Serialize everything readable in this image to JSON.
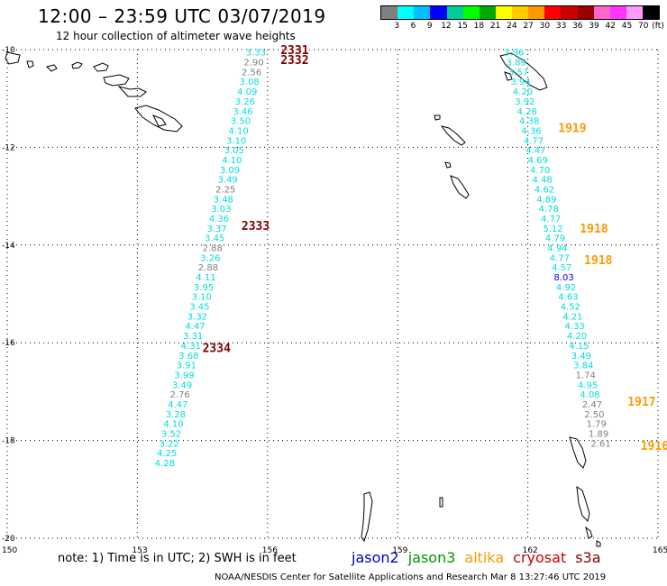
{
  "title": "12:00 – 23:59 UTC 03/07/2019",
  "subtitle": "12 hour collection of altimeter wave heights",
  "scale": {
    "unit_label": "(ft)",
    "labels": [
      "3",
      "6",
      "9",
      "12",
      "15",
      "18",
      "21",
      "24",
      "27",
      "30",
      "33",
      "36",
      "39",
      "42",
      "45",
      "70"
    ],
    "colors": [
      "#808080",
      "#00ffff",
      "#00bfff",
      "#0000ff",
      "#00cc99",
      "#00ff00",
      "#00aa00",
      "#ffff00",
      "#ffcc00",
      "#ff9900",
      "#ff0000",
      "#cc0000",
      "#990000",
      "#ff66cc",
      "#ff33ff",
      "#ff99ff",
      "#000000"
    ]
  },
  "axes": {
    "lat_labels": [
      "-10",
      "-12",
      "-14",
      "-16",
      "-18",
      "-20"
    ],
    "lon_labels": [
      "150",
      "153",
      "156",
      "159",
      "162",
      "165"
    ]
  },
  "tracks": [
    {
      "color": "#00dddd",
      "lat": -10.05,
      "lon": 155.75,
      "value": "3.33"
    },
    {
      "color": "#808080",
      "lat": -10.25,
      "lon": 155.7,
      "value": "2.90"
    },
    {
      "color": "#808080",
      "lat": -10.45,
      "lon": 155.65,
      "value": "2.56"
    },
    {
      "color": "#00dddd",
      "lat": -10.65,
      "lon": 155.6,
      "value": "3.08"
    },
    {
      "color": "#00dddd",
      "lat": -10.85,
      "lon": 155.55,
      "value": "4.09"
    },
    {
      "color": "#00dddd",
      "lat": -11.05,
      "lon": 155.5,
      "value": "3.26"
    },
    {
      "color": "#00dddd",
      "lat": -11.25,
      "lon": 155.45,
      "value": "3.46"
    },
    {
      "color": "#00dddd",
      "lat": -11.45,
      "lon": 155.4,
      "value": "3.50"
    },
    {
      "color": "#00dddd",
      "lat": -11.65,
      "lon": 155.35,
      "value": "4.10"
    },
    {
      "color": "#00dddd",
      "lat": -11.85,
      "lon": 155.3,
      "value": "3.10"
    },
    {
      "color": "#00dddd",
      "lat": -12.05,
      "lon": 155.25,
      "value": "3.05"
    },
    {
      "color": "#00dddd",
      "lat": -12.25,
      "lon": 155.2,
      "value": "4.10"
    },
    {
      "color": "#00dddd",
      "lat": -12.45,
      "lon": 155.15,
      "value": "3.09"
    },
    {
      "color": "#00dddd",
      "lat": -12.65,
      "lon": 155.1,
      "value": "3.49"
    },
    {
      "color": "#808080",
      "lat": -12.85,
      "lon": 155.05,
      "value": "2.25"
    },
    {
      "color": "#00dddd",
      "lat": -13.05,
      "lon": 155.0,
      "value": "3.48"
    },
    {
      "color": "#00dddd",
      "lat": -13.25,
      "lon": 154.95,
      "value": "3.03"
    },
    {
      "color": "#00dddd",
      "lat": -13.45,
      "lon": 154.9,
      "value": "4.36"
    },
    {
      "color": "#00dddd",
      "lat": -13.65,
      "lon": 154.85,
      "value": "3.37"
    },
    {
      "color": "#00dddd",
      "lat": -13.85,
      "lon": 154.8,
      "value": "3.45"
    },
    {
      "color": "#808080",
      "lat": -14.05,
      "lon": 154.75,
      "value": "2.88"
    },
    {
      "color": "#00dddd",
      "lat": -14.25,
      "lon": 154.7,
      "value": "3.26"
    },
    {
      "color": "#808080",
      "lat": -14.45,
      "lon": 154.65,
      "value": "2.88"
    },
    {
      "color": "#00dddd",
      "lat": -14.65,
      "lon": 154.6,
      "value": "4.11"
    },
    {
      "color": "#00dddd",
      "lat": -14.85,
      "lon": 154.55,
      "value": "3.95"
    },
    {
      "color": "#00dddd",
      "lat": -15.05,
      "lon": 154.5,
      "value": "3.10"
    },
    {
      "color": "#00dddd",
      "lat": -15.25,
      "lon": 154.45,
      "value": "3.45"
    },
    {
      "color": "#00dddd",
      "lat": -15.45,
      "lon": 154.4,
      "value": "3.32"
    },
    {
      "color": "#00dddd",
      "lat": -15.65,
      "lon": 154.35,
      "value": "4.47"
    },
    {
      "color": "#00dddd",
      "lat": -15.85,
      "lon": 154.3,
      "value": "3.31"
    },
    {
      "color": "#00dddd",
      "lat": -16.05,
      "lon": 154.25,
      "value": "4.31"
    },
    {
      "color": "#00dddd",
      "lat": -16.25,
      "lon": 154.2,
      "value": "3.68"
    },
    {
      "color": "#00dddd",
      "lat": -16.45,
      "lon": 154.15,
      "value": "3.91"
    },
    {
      "color": "#00dddd",
      "lat": -16.65,
      "lon": 154.1,
      "value": "3.99"
    },
    {
      "color": "#00dddd",
      "lat": -16.85,
      "lon": 154.05,
      "value": "3.49"
    },
    {
      "color": "#808080",
      "lat": -17.05,
      "lon": 154.0,
      "value": "2.76"
    },
    {
      "color": "#00dddd",
      "lat": -17.25,
      "lon": 153.95,
      "value": "4.47"
    },
    {
      "color": "#00dddd",
      "lat": -17.45,
      "lon": 153.9,
      "value": "3.28"
    },
    {
      "color": "#00dddd",
      "lat": -17.65,
      "lon": 153.85,
      "value": "4.10"
    },
    {
      "color": "#00dddd",
      "lat": -17.85,
      "lon": 153.8,
      "value": "3.52"
    },
    {
      "color": "#00dddd",
      "lat": -18.05,
      "lon": 153.75,
      "value": "3.22"
    },
    {
      "color": "#00dddd",
      "lat": -18.25,
      "lon": 153.7,
      "value": "4.25"
    },
    {
      "color": "#00dddd",
      "lat": -18.45,
      "lon": 153.65,
      "value": "4.28"
    },
    {
      "color": "#00dddd",
      "lat": -10.05,
      "lon": 161.7,
      "value": "3.96"
    },
    {
      "color": "#00dddd",
      "lat": -10.25,
      "lon": 161.75,
      "value": "3.89"
    },
    {
      "color": "#00dddd",
      "lat": -10.45,
      "lon": 161.8,
      "value": "3.57"
    },
    {
      "color": "#00dddd",
      "lat": -10.65,
      "lon": 161.85,
      "value": "3.94"
    },
    {
      "color": "#00dddd",
      "lat": -10.85,
      "lon": 161.9,
      "value": "4.20"
    },
    {
      "color": "#00dddd",
      "lat": -11.05,
      "lon": 161.95,
      "value": "3.92"
    },
    {
      "color": "#00dddd",
      "lat": -11.25,
      "lon": 162.0,
      "value": "4.28"
    },
    {
      "color": "#00dddd",
      "lat": -11.45,
      "lon": 162.05,
      "value": "4.38"
    },
    {
      "color": "#00dddd",
      "lat": -11.65,
      "lon": 162.1,
      "value": "4.36"
    },
    {
      "color": "#00dddd",
      "lat": -11.85,
      "lon": 162.15,
      "value": "4.77"
    },
    {
      "color": "#00dddd",
      "lat": -12.05,
      "lon": 162.2,
      "value": "4.47"
    },
    {
      "color": "#00dddd",
      "lat": -12.25,
      "lon": 162.25,
      "value": "4.69"
    },
    {
      "color": "#00dddd",
      "lat": -12.45,
      "lon": 162.3,
      "value": "4.70"
    },
    {
      "color": "#00dddd",
      "lat": -12.65,
      "lon": 162.35,
      "value": "4.48"
    },
    {
      "color": "#00dddd",
      "lat": -12.85,
      "lon": 162.4,
      "value": "4.62"
    },
    {
      "color": "#00dddd",
      "lat": -13.05,
      "lon": 162.45,
      "value": "4.89"
    },
    {
      "color": "#00dddd",
      "lat": -13.25,
      "lon": 162.5,
      "value": "4.78"
    },
    {
      "color": "#00dddd",
      "lat": -13.45,
      "lon": 162.55,
      "value": "4.77"
    },
    {
      "color": "#00dddd",
      "lat": -13.65,
      "lon": 162.6,
      "value": "5.12"
    },
    {
      "color": "#00dddd",
      "lat": -13.85,
      "lon": 162.65,
      "value": "4.79"
    },
    {
      "color": "#00dddd",
      "lat": -14.05,
      "lon": 162.7,
      "value": "4.94"
    },
    {
      "color": "#00dddd",
      "lat": -14.25,
      "lon": 162.75,
      "value": "4.77"
    },
    {
      "color": "#00dddd",
      "lat": -14.45,
      "lon": 162.8,
      "value": "4.57"
    },
    {
      "color": "#0000ff",
      "lat": -14.65,
      "lon": 162.85,
      "value": "8.03"
    },
    {
      "color": "#00dddd",
      "lat": -14.85,
      "lon": 162.9,
      "value": "4.92"
    },
    {
      "color": "#00dddd",
      "lat": -15.05,
      "lon": 162.95,
      "value": "4.63"
    },
    {
      "color": "#00dddd",
      "lat": -15.25,
      "lon": 163.0,
      "value": "4.52"
    },
    {
      "color": "#00dddd",
      "lat": -15.45,
      "lon": 163.05,
      "value": "4.21"
    },
    {
      "color": "#00dddd",
      "lat": -15.65,
      "lon": 163.1,
      "value": "4.33"
    },
    {
      "color": "#00dddd",
      "lat": -15.85,
      "lon": 163.15,
      "value": "4.20"
    },
    {
      "color": "#00dddd",
      "lat": -16.05,
      "lon": 163.2,
      "value": "4.15"
    },
    {
      "color": "#00dddd",
      "lat": -16.25,
      "lon": 163.25,
      "value": "3.49"
    },
    {
      "color": "#00dddd",
      "lat": -16.45,
      "lon": 163.3,
      "value": "3.84"
    },
    {
      "color": "#808080",
      "lat": -16.65,
      "lon": 163.35,
      "value": "1.74"
    },
    {
      "color": "#00dddd",
      "lat": -16.85,
      "lon": 163.4,
      "value": "4.95"
    },
    {
      "color": "#00dddd",
      "lat": -17.05,
      "lon": 163.45,
      "value": "4.08"
    },
    {
      "color": "#808080",
      "lat": -17.25,
      "lon": 163.5,
      "value": "2.47"
    },
    {
      "color": "#808080",
      "lat": -17.45,
      "lon": 163.55,
      "value": "2.50"
    },
    {
      "color": "#808080",
      "lat": -17.65,
      "lon": 163.6,
      "value": "1.79"
    },
    {
      "color": "#808080",
      "lat": -17.85,
      "lon": 163.65,
      "value": "1.89"
    },
    {
      "color": "#808080",
      "lat": -18.05,
      "lon": 163.7,
      "value": "2.61"
    }
  ],
  "pass_labels": [
    {
      "text": "2331",
      "color": "#800000",
      "lat": -10.0,
      "lon": 156.3
    },
    {
      "text": "2332",
      "color": "#800000",
      "lat": -10.2,
      "lon": 156.3
    },
    {
      "text": "2333",
      "color": "#800000",
      "lat": -13.6,
      "lon": 155.4
    },
    {
      "text": "2334",
      "color": "#800000",
      "lat": -16.1,
      "lon": 154.5
    },
    {
      "text": "1919",
      "color": "#ff9900",
      "lat": -11.6,
      "lon": 162.7
    },
    {
      "text": "1918",
      "color": "#ff9900",
      "lat": -13.65,
      "lon": 163.2
    },
    {
      "text": "1918",
      "color": "#ff9900",
      "lat": -14.3,
      "lon": 163.3
    },
    {
      "text": "1917",
      "color": "#ff9900",
      "lat": -17.2,
      "lon": 164.3
    },
    {
      "text": "1916",
      "color": "#ff9900",
      "lat": -18.1,
      "lon": 164.6
    }
  ],
  "note": "note:  1) Time is in UTC;  2) SWH is in feet",
  "legend": [
    {
      "name": "jason2",
      "color": "#0000cc"
    },
    {
      "name": "jason3",
      "color": "#009900"
    },
    {
      "name": "altika",
      "color": "#ff9900"
    },
    {
      "name": "cryosat",
      "color": "#cc0000"
    },
    {
      "name": "s3a",
      "color": "#800000"
    }
  ],
  "credit": "NOAA/NESDIS Center for Satellite Applications and Research    Mar  8 13:27:46 UTC 2019"
}
